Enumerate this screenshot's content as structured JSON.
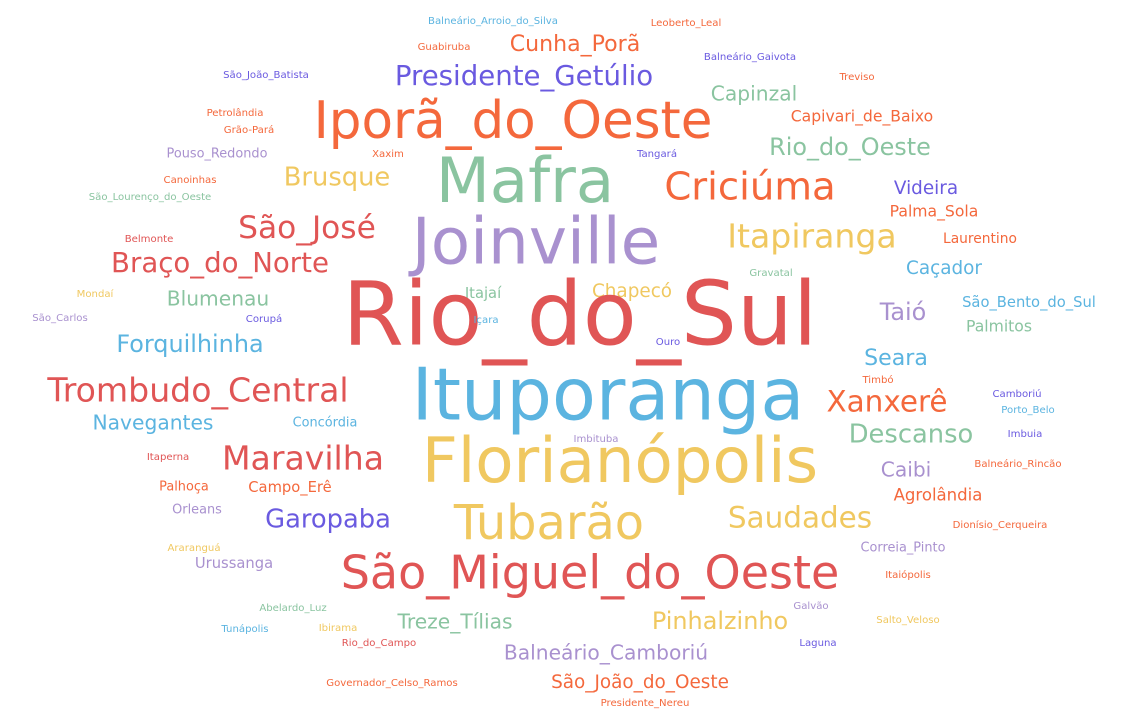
{
  "chart_data": {
    "type": "wordcloud",
    "words": [
      {
        "text": "Balneário_Arroio_do_Silva",
        "color": "#5bb4e0"
      },
      {
        "text": "Leoberto_Leal",
        "color": "#f4683c"
      },
      {
        "text": "Guabiruba",
        "color": "#f4683c"
      },
      {
        "text": "Cunha_Porã",
        "color": "#f4683c"
      },
      {
        "text": "Balneário_Gaivota",
        "color": "#6a5ae0"
      },
      {
        "text": "São_João_Batista",
        "color": "#6a5ae0"
      },
      {
        "text": "Presidente_Getúlio",
        "color": "#6a5ae0"
      },
      {
        "text": "Treviso",
        "color": "#f4683c"
      },
      {
        "text": "Iporã_do_Oeste",
        "color": "#f4683c"
      },
      {
        "text": "Capinzal",
        "color": "#8ac4a0"
      },
      {
        "text": "Petrolândia",
        "color": "#f4683c"
      },
      {
        "text": "Capivari_de_Baixo",
        "color": "#f4683c"
      },
      {
        "text": "Grão-Pará",
        "color": "#f4683c"
      },
      {
        "text": "Rio_do_Oeste",
        "color": "#8ac4a0"
      },
      {
        "text": "Pouso_Redondo",
        "color": "#a991cf"
      },
      {
        "text": "Xaxim",
        "color": "#f4683c"
      },
      {
        "text": "Tangará",
        "color": "#6a5ae0"
      },
      {
        "text": "Mafra",
        "color": "#8ac4a0"
      },
      {
        "text": "Canoinhas",
        "color": "#f4683c"
      },
      {
        "text": "Brusque",
        "color": "#f0c860"
      },
      {
        "text": "Criciúma",
        "color": "#f4683c"
      },
      {
        "text": "São_Lourenço_do_Oeste",
        "color": "#8ac4a0"
      },
      {
        "text": "Videira",
        "color": "#6a5ae0"
      },
      {
        "text": "Palma_Sola",
        "color": "#f4683c"
      },
      {
        "text": "São_José",
        "color": "#e05555"
      },
      {
        "text": "Joinville",
        "color": "#a991cf"
      },
      {
        "text": "Itapiranga",
        "color": "#f0c860"
      },
      {
        "text": "Belmonte",
        "color": "#e05555"
      },
      {
        "text": "Laurentino",
        "color": "#f4683c"
      },
      {
        "text": "Braço_do_Norte",
        "color": "#e05555"
      },
      {
        "text": "Gravatal",
        "color": "#8ac4a0"
      },
      {
        "text": "Caçador",
        "color": "#5bb4e0"
      },
      {
        "text": "Mondaí",
        "color": "#f0c860"
      },
      {
        "text": "Blumenau",
        "color": "#8ac4a0"
      },
      {
        "text": "Itajaí",
        "color": "#8ac4a0"
      },
      {
        "text": "Chapecó",
        "color": "#f0c860"
      },
      {
        "text": "Rio_do_Sul",
        "color": "#e05555"
      },
      {
        "text": "São_Bento_do_Sul",
        "color": "#5bb4e0"
      },
      {
        "text": "São_Carlos",
        "color": "#a991cf"
      },
      {
        "text": "Corupá",
        "color": "#6a5ae0"
      },
      {
        "text": "Içara",
        "color": "#5bb4e0"
      },
      {
        "text": "Taió",
        "color": "#a991cf"
      },
      {
        "text": "Palmitos",
        "color": "#8ac4a0"
      },
      {
        "text": "Forquilhinha",
        "color": "#5bb4e0"
      },
      {
        "text": "Ouro",
        "color": "#6a5ae0"
      },
      {
        "text": "Seara",
        "color": "#5bb4e0"
      },
      {
        "text": "Trombudo_Central",
        "color": "#e05555"
      },
      {
        "text": "Ituporanga",
        "color": "#5bb4e0"
      },
      {
        "text": "Timbó",
        "color": "#f4683c"
      },
      {
        "text": "Camboriú",
        "color": "#6a5ae0"
      },
      {
        "text": "Xanxerê",
        "color": "#f4683c"
      },
      {
        "text": "Porto_Belo",
        "color": "#5bb4e0"
      },
      {
        "text": "Navegantes",
        "color": "#5bb4e0"
      },
      {
        "text": "Concórdia",
        "color": "#5bb4e0"
      },
      {
        "text": "Imbuia",
        "color": "#6a5ae0"
      },
      {
        "text": "Descanso",
        "color": "#8ac4a0"
      },
      {
        "text": "Imbituba",
        "color": "#a991cf"
      },
      {
        "text": "Itaperna",
        "color": "#e05555"
      },
      {
        "text": "Maravilha",
        "color": "#e05555"
      },
      {
        "text": "Florianópolis",
        "color": "#f0c860"
      },
      {
        "text": "Balneário_Rincão",
        "color": "#f4683c"
      },
      {
        "text": "Caibi",
        "color": "#a991cf"
      },
      {
        "text": "Palhoça",
        "color": "#f4683c"
      },
      {
        "text": "Campo_Erê",
        "color": "#f4683c"
      },
      {
        "text": "Agrolândia",
        "color": "#f4683c"
      },
      {
        "text": "Orleans",
        "color": "#a991cf"
      },
      {
        "text": "Garopaba",
        "color": "#6a5ae0"
      },
      {
        "text": "Tubarão",
        "color": "#f0c860"
      },
      {
        "text": "Saudades",
        "color": "#f0c860"
      },
      {
        "text": "Dionísio_Cerqueira",
        "color": "#f4683c"
      },
      {
        "text": "Araranguá",
        "color": "#f0c860"
      },
      {
        "text": "Correia_Pinto",
        "color": "#a991cf"
      },
      {
        "text": "Urussanga",
        "color": "#a991cf"
      },
      {
        "text": "São_Miguel_do_Oeste",
        "color": "#e05555"
      },
      {
        "text": "Itaiópolis",
        "color": "#f4683c"
      },
      {
        "text": "Abelardo_Luz",
        "color": "#8ac4a0"
      },
      {
        "text": "Galvão",
        "color": "#a991cf"
      },
      {
        "text": "Treze_Tílias",
        "color": "#8ac4a0"
      },
      {
        "text": "Pinhalzinho",
        "color": "#f0c860"
      },
      {
        "text": "Salto_Veloso",
        "color": "#f0c860"
      },
      {
        "text": "Tunápolis",
        "color": "#5bb4e0"
      },
      {
        "text": "Ibirama",
        "color": "#f0c860"
      },
      {
        "text": "Rio_do_Campo",
        "color": "#e05555"
      },
      {
        "text": "Laguna",
        "color": "#6a5ae0"
      },
      {
        "text": "Balneário_Camboriú",
        "color": "#a991cf"
      },
      {
        "text": "Governador_Celso_Ramos",
        "color": "#f4683c"
      },
      {
        "text": "São_João_do_Oeste",
        "color": "#f4683c"
      },
      {
        "text": "Presidente_Nereu",
        "color": "#f4683c"
      }
    ]
  }
}
